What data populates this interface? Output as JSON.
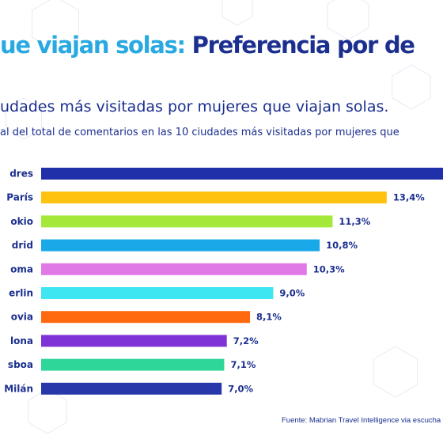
{
  "title": {
    "part1": "ue viajan solas:",
    "part2": " Preferencia por de"
  },
  "subtitle": "udades más visitadas por mujeres que viajan solas.",
  "note": "al  del total de comentarios en las 10 ciudades más visitadas por mujeres que",
  "source": "Fuente: Mabrian Travel Intelligence via escucha s",
  "colors": {
    "title_light": "#29a9e1",
    "title_dark": "#1b2f8f",
    "text": "#1b2f8f"
  },
  "chart_data": {
    "type": "bar",
    "orientation": "horizontal",
    "categories": [
      "dres",
      "París",
      "okio",
      "drid",
      "oma",
      "erlin",
      "ovia",
      "lona",
      "sboa",
      "Milán"
    ],
    "values": [
      null,
      13.4,
      11.3,
      10.8,
      10.3,
      9.0,
      8.1,
      7.2,
      7.1,
      7.0
    ],
    "value_labels": [
      "",
      "13,4%",
      "11,3%",
      "10,8%",
      "10,3%",
      "9,0%",
      "8,1%",
      "7,2%",
      "7,1%",
      "7,0%"
    ],
    "bar_colors": [
      "#2030a8",
      "#ffc20e",
      "#a4e83a",
      "#1aa9e8",
      "#e079e6",
      "#3ee6f2",
      "#ff6a10",
      "#7f33d6",
      "#2ed69a",
      "#2838ab"
    ],
    "first_bar_extends_past_edge": true,
    "xlim": [
      0,
      14.5
    ],
    "axis_ticks": false,
    "grid": false,
    "legend": false
  }
}
